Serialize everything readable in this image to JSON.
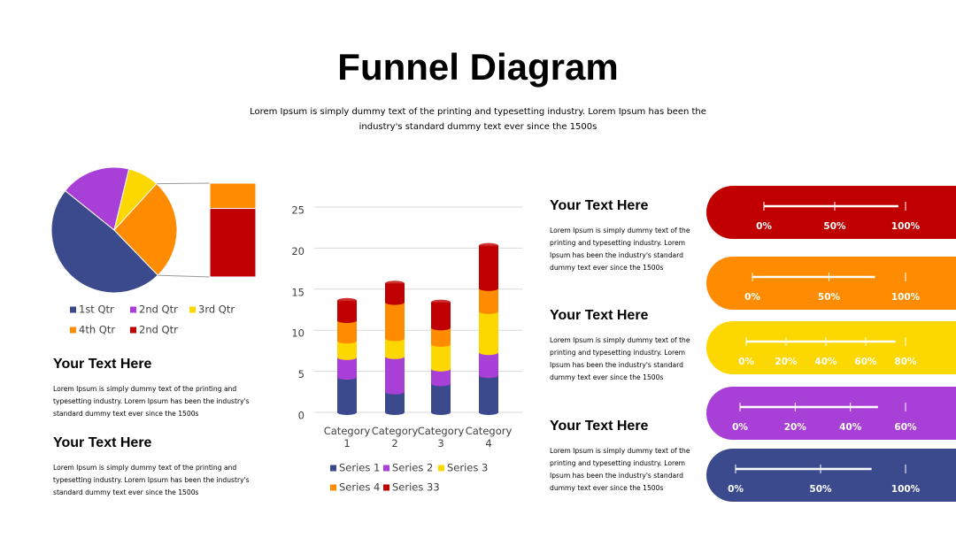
{
  "title": "Funnel Diagram",
  "subtitle": "Lorem Ipsum is simply dummy text of the printing and typesetting industry. Lorem Ipsum has been the industry's standard dummy text ever since the 1500s",
  "left_blocks": [
    {
      "heading": "Your Text Here",
      "body": "Lorem Ipsum is simply dummy text of the printing and typesetting industry. Lorem Ipsum has been the industry's standard dummy text ever since the 1500s"
    },
    {
      "heading": "Your Text Here",
      "body": "Lorem Ipsum is simply dummy text of the printing and typesetting industry. Lorem Ipsum has been the industry's standard dummy text ever since the 1500s"
    }
  ],
  "middle_blocks": [
    {
      "heading": "Your Text Here",
      "body": "Lorem Ipsum is simply dummy text of the printing and typesetting industry. Lorem Ipsum has been the industry's standard dummy text ever since the 1500s"
    },
    {
      "heading": "Your Text Here",
      "body": "Lorem Ipsum is simply dummy text of the printing and typesetting industry. Lorem Ipsum has been the industry's standard dummy text ever since the 1500s"
    },
    {
      "heading": "Your Text Here",
      "body": "Lorem Ipsum is simply dummy text of the printing and typesetting industry. Lorem Ipsum has been the industry's standard dummy text ever since the 1500s"
    }
  ],
  "chart_data": [
    {
      "type": "pie",
      "categories": [
        "1st Qtr",
        "2nd Qtr",
        "3rd Qtr",
        "4th Qtr",
        "2nd Qtr"
      ],
      "values": [
        48,
        18,
        8,
        7,
        19
      ],
      "colors": [
        "#3b4a8c",
        "#a83fd6",
        "#fcd700",
        "#ff8c00",
        "#c00000"
      ],
      "secondary_count": 2
    },
    {
      "type": "bar",
      "stacked": true,
      "categories": [
        "Category 1",
        "Category 2",
        "Category 3",
        "Category 4"
      ],
      "series": [
        {
          "name": "Series 1",
          "color": "#3b4a8c",
          "values": [
            4.3,
            2.5,
            3.5,
            4.5
          ]
        },
        {
          "name": "Series 2",
          "color": "#a83fd6",
          "values": [
            2.4,
            4.3,
            1.8,
            2.8
          ]
        },
        {
          "name": "Series 3",
          "color": "#fcd700",
          "values": [
            2.0,
            2.2,
            3.0,
            5.0
          ]
        },
        {
          "name": "Series 4",
          "color": "#ff8c00",
          "values": [
            2.5,
            4.4,
            2.0,
            2.8
          ]
        },
        {
          "name": "Series 33",
          "color": "#c00000",
          "values": [
            2.4,
            2.3,
            3.1,
            5.2
          ]
        }
      ],
      "ylim": [
        0,
        25
      ],
      "yticks": [
        0,
        5,
        10,
        15,
        20,
        25
      ],
      "grid": true
    },
    {
      "type": "progress",
      "values": [
        95
      ],
      "color": "#c00000",
      "xlim": [
        0,
        100
      ],
      "xticks": [
        {
          "value": 0,
          "label": "0%"
        },
        {
          "value": 50,
          "label": "50%"
        },
        {
          "value": 100,
          "label": "100%"
        }
      ]
    },
    {
      "type": "progress",
      "values": [
        80
      ],
      "color": "#ff8c00",
      "xlim": [
        0,
        100
      ],
      "xticks": [
        {
          "value": 0,
          "label": "0%"
        },
        {
          "value": 50,
          "label": "50%"
        },
        {
          "value": 100,
          "label": "100%"
        }
      ]
    },
    {
      "type": "progress",
      "values": [
        75
      ],
      "color": "#fcd700",
      "xlim": [
        0,
        80
      ],
      "xticks": [
        {
          "value": 0,
          "label": "0%"
        },
        {
          "value": 20,
          "label": "20%"
        },
        {
          "value": 40,
          "label": "40%"
        },
        {
          "value": 60,
          "label": "60%"
        },
        {
          "value": 80,
          "label": "80%"
        }
      ]
    },
    {
      "type": "progress",
      "values": [
        50
      ],
      "color": "#a83fd6",
      "xlim": [
        0,
        60
      ],
      "xticks": [
        {
          "value": 0,
          "label": "0%"
        },
        {
          "value": 20,
          "label": "20%"
        },
        {
          "value": 40,
          "label": "40%"
        },
        {
          "value": 60,
          "label": "60%"
        }
      ]
    },
    {
      "type": "progress",
      "values": [
        80
      ],
      "color": "#3b4a8c",
      "xlim": [
        0,
        100
      ],
      "xticks": [
        {
          "value": 0,
          "label": "0%"
        },
        {
          "value": 50,
          "label": "50%"
        },
        {
          "value": 100,
          "label": "100%"
        }
      ]
    }
  ]
}
